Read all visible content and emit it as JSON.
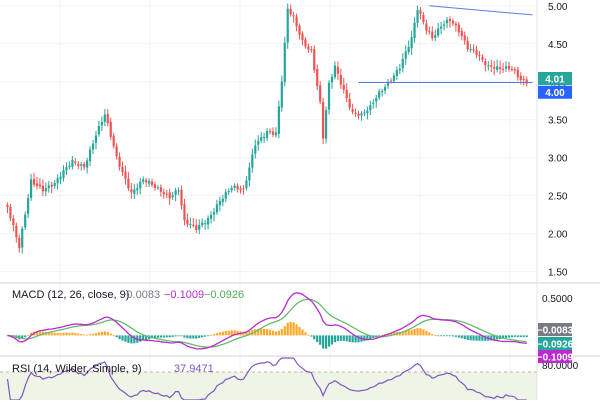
{
  "chart_data": [
    {
      "type": "candlestick",
      "axis_side": "right",
      "y_ticks": [
        "5.00",
        "4.50",
        "4.00",
        "3.50",
        "3.00",
        "2.50",
        "2.00",
        "1.50"
      ],
      "ylim": [
        1.35,
        5.05
      ],
      "tick_values": [
        5.0,
        4.5,
        4.0,
        3.5,
        3.0,
        2.5,
        2.0,
        1.5
      ],
      "colors": {
        "up": "#26a69a",
        "down": "#ef5350",
        "trendline": "#5b7be0",
        "grid": "#f0f3fa"
      },
      "price_badges": [
        {
          "label": "4.01",
          "value": 4.01,
          "color": "#26a69a"
        },
        {
          "label": "4.00",
          "value": 4.0,
          "color": "#2962ff"
        }
      ],
      "trendlines": [
        {
          "from": [
            143,
            5.0
          ],
          "to": [
            178,
            4.88
          ]
        },
        {
          "from": [
            119,
            3.99
          ],
          "to": [
            178,
            3.99
          ]
        }
      ],
      "anchors": [
        [
          0,
          2.35
        ],
        [
          4,
          1.8
        ],
        [
          8,
          2.7
        ],
        [
          12,
          2.6
        ],
        [
          16,
          2.65
        ],
        [
          22,
          2.95
        ],
        [
          26,
          2.9
        ],
        [
          30,
          3.3
        ],
        [
          33,
          3.55
        ],
        [
          37,
          3.0
        ],
        [
          42,
          2.55
        ],
        [
          46,
          2.7
        ],
        [
          50,
          2.6
        ],
        [
          55,
          2.5
        ],
        [
          58,
          2.6
        ],
        [
          60,
          2.15
        ],
        [
          64,
          2.05
        ],
        [
          68,
          2.2
        ],
        [
          72,
          2.45
        ],
        [
          76,
          2.6
        ],
        [
          80,
          2.55
        ],
        [
          84,
          3.2
        ],
        [
          88,
          3.35
        ],
        [
          91,
          3.3
        ],
        [
          93,
          4.0
        ],
        [
          95,
          4.95
        ],
        [
          97,
          4.85
        ],
        [
          100,
          4.55
        ],
        [
          103,
          4.4
        ],
        [
          106,
          3.7
        ],
        [
          107,
          3.25
        ],
        [
          109,
          3.95
        ],
        [
          111,
          4.2
        ],
        [
          114,
          3.9
        ],
        [
          117,
          3.6
        ],
        [
          120,
          3.55
        ],
        [
          123,
          3.65
        ],
        [
          126,
          3.85
        ],
        [
          130,
          4.05
        ],
        [
          133,
          4.2
        ],
        [
          137,
          4.55
        ],
        [
          139,
          4.95
        ],
        [
          142,
          4.7
        ],
        [
          144,
          4.6
        ],
        [
          147,
          4.75
        ],
        [
          150,
          4.8
        ],
        [
          153,
          4.65
        ],
        [
          156,
          4.45
        ],
        [
          159,
          4.4
        ],
        [
          163,
          4.2
        ],
        [
          167,
          4.15
        ],
        [
          171,
          4.18
        ],
        [
          174,
          4.05
        ],
        [
          176,
          4.01
        ]
      ]
    },
    {
      "type": "macd",
      "label": "MACD (12, 26, close, 9)",
      "values": [
        "−0.0083",
        "−0.1009",
        "−0.0926"
      ],
      "value_colors": [
        "#787b86",
        "#b92bcf",
        "#4caf50"
      ],
      "y_ticks": [
        "0.5000"
      ],
      "tick_values": [
        0.5
      ],
      "ylim": [
        -0.25,
        0.65
      ],
      "badges": [
        {
          "label": "−0.0083",
          "value": -0.0083,
          "color": "#787b86"
        },
        {
          "label": "−0.0926",
          "value": -0.0926,
          "color": "#26a69a"
        },
        {
          "label": "−0.1009",
          "value": -0.1009,
          "color": "#b92bcf"
        }
      ],
      "colors": {
        "macd": "#b92bcf",
        "signal": "#66bb6a",
        "hist_pos": "#ffa726",
        "hist_neg": "#26a69a"
      }
    },
    {
      "type": "rsi",
      "label": "RSI (14, Wilder, Simple, 9)",
      "value": "37.9471",
      "value_color": "#7e57c2",
      "y_ticks": [
        "80.0000"
      ],
      "tick_values": [
        80
      ],
      "ylim": [
        30,
        90
      ],
      "band": [
        30,
        70
      ],
      "colors": {
        "line": "#7e57c2",
        "band": "#eef5e6",
        "band_line": "#c2b49b"
      }
    }
  ]
}
